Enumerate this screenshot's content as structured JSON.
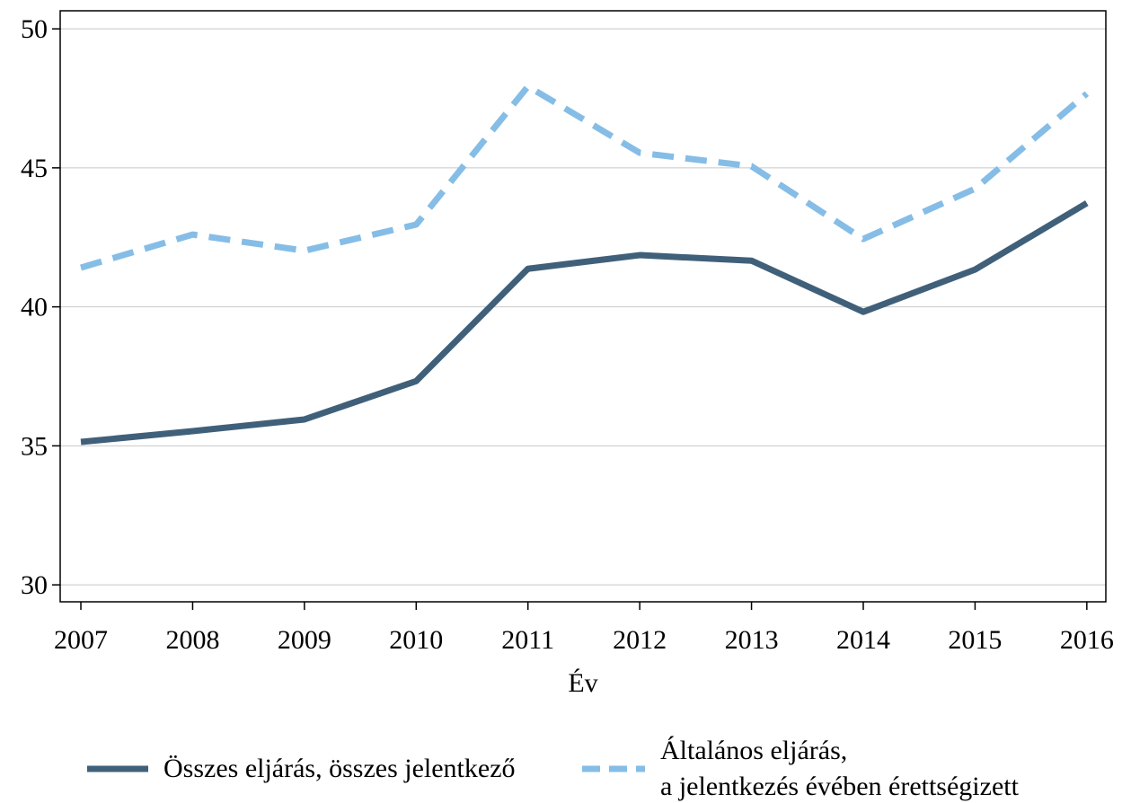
{
  "chart_data": {
    "type": "line",
    "x_label": "Év",
    "x": [
      2007,
      2008,
      2009,
      2010,
      2011,
      2012,
      2013,
      2014,
      2015,
      2016
    ],
    "xlim": [
      2006.815,
      2016.17
    ],
    "xticks": [
      2007,
      2008,
      2009,
      2010,
      2011,
      2012,
      2013,
      2014,
      2015,
      2016
    ],
    "ylim": [
      29.39,
      50.65
    ],
    "yticks": [
      30,
      35,
      40,
      45,
      50
    ],
    "grid": true,
    "legend": "bottom",
    "series": [
      {
        "name": "Összes eljárás, összes jelentkező",
        "color": "#40607a",
        "dash": false,
        "values": [
          35.14,
          35.53,
          35.95,
          37.33,
          41.37,
          41.86,
          41.66,
          39.82,
          41.34,
          43.73
        ]
      },
      {
        "name": "Általános eljárás,\na jelentkezés évében érettségizett",
        "color": "#85bde6",
        "dash": true,
        "values": [
          41.41,
          42.6,
          42.02,
          42.96,
          47.93,
          45.54,
          45.06,
          42.44,
          44.25,
          47.67
        ]
      }
    ]
  }
}
